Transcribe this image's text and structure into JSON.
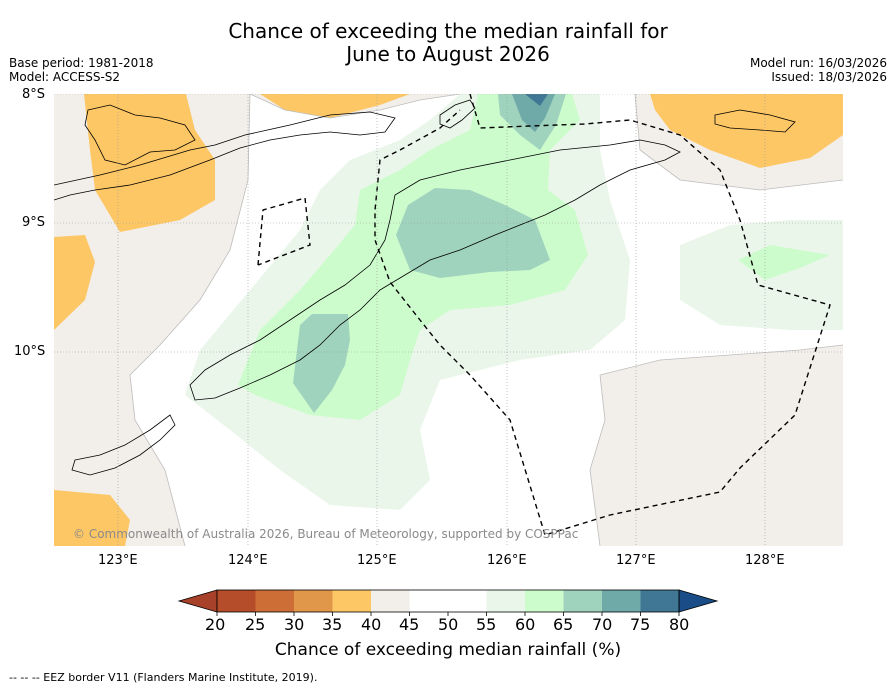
{
  "title_line1": "Chance of exceeding the median rainfall for",
  "title_line2": "June to August 2026",
  "base_period": "Base period: 1981-2018",
  "model": "Model: ACCESS-S2",
  "model_run": "Model run: 16/03/2026",
  "issued": "Issued: 18/03/2026",
  "lat_labels": [
    "8°S",
    "9°S",
    "10°S"
  ],
  "lon_labels": [
    "123°E",
    "124°E",
    "125°E",
    "126°E",
    "127°E",
    "128°E"
  ],
  "copyright": "© Commonwealth of Australia 2026, Bureau of Meteorology, supported by COSPPac",
  "colorbar": {
    "ticks": [
      "20",
      "25",
      "30",
      "35",
      "40",
      "45",
      "50",
      "55",
      "60",
      "65",
      "70",
      "75",
      "80"
    ],
    "colors": [
      "#a8412a",
      "#b54d2a",
      "#cc6e36",
      "#e0974a",
      "#fdc765",
      "#f2eeea",
      "#ffffff",
      "#ffffff",
      "#ebf6eb",
      "#ccfccc",
      "#9fd3bd",
      "#6fa9a8",
      "#3f7794",
      "#1a4d87"
    ],
    "label": "Chance of exceeding median rainfall (%)"
  },
  "footnote": "--  --  -- EEZ border V11 (Flanders Marine Institute, 2019)."
}
